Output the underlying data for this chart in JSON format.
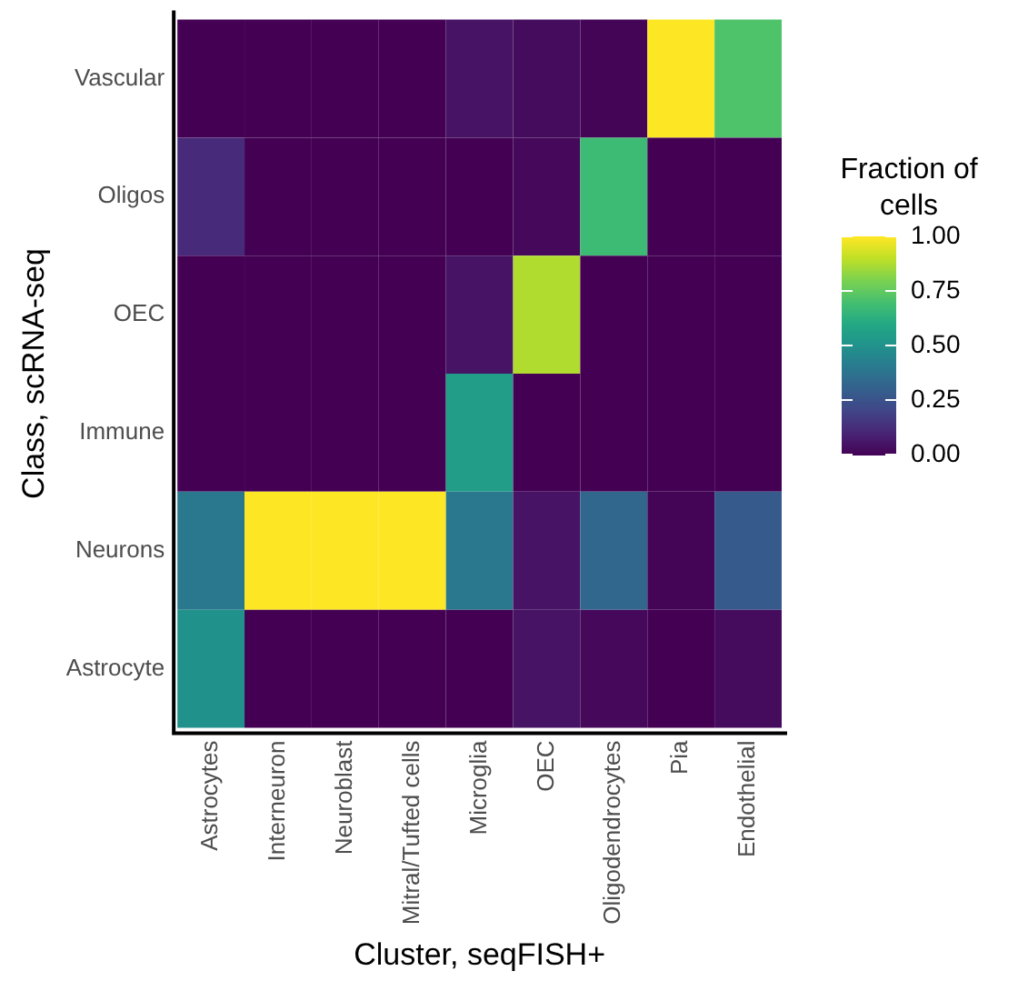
{
  "chart_data": {
    "type": "heatmap",
    "xlabel": "Cluster, seqFISH+",
    "ylabel": "Class, scRNA-seq",
    "clabel": "Fraction of cells",
    "categories": [
      "Astrocytes",
      "Interneuron",
      "Neuroblast",
      "Mitral/Tufted cells",
      "Microglia",
      "OEC",
      "Oligodendrocytes",
      "Pia",
      "Endothelial"
    ],
    "y_categories": [
      "Vascular",
      "Oligos",
      "OEC",
      "Immune",
      "Neurons",
      "Astrocyte"
    ],
    "cells": [
      [
        0,
        0,
        0,
        0,
        0.05,
        0.03,
        0.01,
        1.0,
        0.72
      ],
      [
        0.12,
        0,
        0,
        0,
        0,
        0.02,
        0.68,
        0,
        0
      ],
      [
        0,
        0,
        0,
        0,
        0.05,
        0.88,
        0,
        0,
        0
      ],
      [
        0,
        0,
        0,
        0,
        0.55,
        0,
        0,
        0,
        0
      ],
      [
        0.4,
        1.0,
        1.0,
        1.0,
        0.4,
        0.05,
        0.33,
        0.01,
        0.28
      ],
      [
        0.5,
        0,
        0,
        0,
        0,
        0.05,
        0.02,
        0,
        0.03
      ]
    ],
    "clim": [
      0,
      1
    ],
    "cticks": [
      {
        "value": 0,
        "label": "0.00"
      },
      {
        "value": 0.25,
        "label": "0.25"
      },
      {
        "value": 0.5,
        "label": "0.50"
      },
      {
        "value": 0.75,
        "label": "0.75"
      },
      {
        "value": 1,
        "label": "1.00"
      }
    ]
  }
}
